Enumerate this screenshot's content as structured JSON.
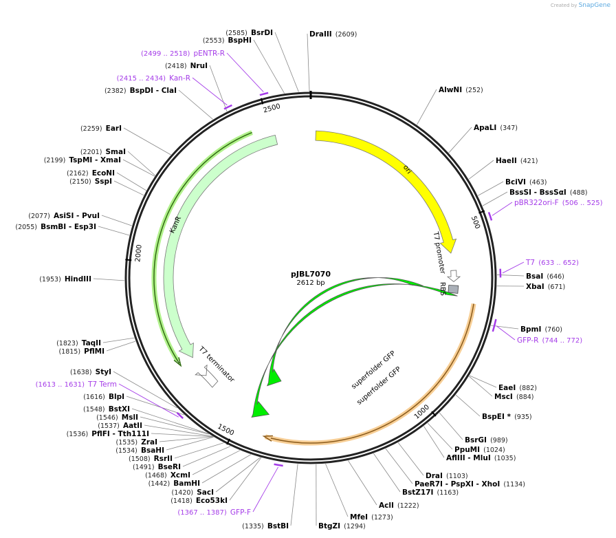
{
  "credit": {
    "prefix": "Created by",
    "brand": "SnapGene"
  },
  "plasmid": {
    "name": "pJBL7070",
    "length_label": "2612 bp",
    "length": 2612
  },
  "ticks": [
    "500",
    "1000",
    "1500",
    "2000",
    "2500"
  ],
  "features": [
    {
      "name": "ori",
      "start": 15,
      "end": 585,
      "color": "#ffff00",
      "direction": "cw"
    },
    {
      "name": "KanR",
      "start": 2510,
      "end": 1710,
      "color": "#ccffcc",
      "direction": "ccw"
    },
    {
      "name": "superfolder GFP",
      "start": 690,
      "end": 1420,
      "color": "#00ee00",
      "direction": "ccw",
      "track": "inner"
    },
    {
      "name": "superfolder GFP",
      "start": 705,
      "end": 1430,
      "color": "#00ee00",
      "direction": "ccw",
      "track": "outer"
    },
    {
      "name": "T7 promoter",
      "start": 650,
      "end": 680,
      "color": "#ffffff"
    },
    {
      "name": "RBS",
      "start": 700,
      "end": 712,
      "color": "#aab0b8"
    },
    {
      "name": "T7 terminator",
      "start": 1630,
      "end": 1660,
      "color": "#ffffff"
    }
  ],
  "enzymes": [
    {
      "name": "DraIII",
      "pos": "2609",
      "bp": 2609
    },
    {
      "name": "AlwNI",
      "pos": "252",
      "bp": 252
    },
    {
      "name": "ApaLI",
      "pos": "347",
      "bp": 347
    },
    {
      "name": "HaeII",
      "pos": "421",
      "bp": 421
    },
    {
      "name": "BciVI",
      "pos": "463",
      "bp": 463
    },
    {
      "name": "BssSI   - BssSαI",
      "pos": "488",
      "bp": 488
    },
    {
      "name": "BsaI",
      "pos": "646",
      "bp": 646
    },
    {
      "name": "XbaI",
      "pos": "671",
      "bp": 671
    },
    {
      "name": "BpmI",
      "pos": "760",
      "bp": 760
    },
    {
      "name": "EaeI",
      "pos": "882",
      "bp": 882
    },
    {
      "name": "MscI",
      "pos": "884",
      "bp": 884
    },
    {
      "name": "BspEI *",
      "pos": "935",
      "bp": 935
    },
    {
      "name": "BsrGI",
      "pos": "989",
      "bp": 989
    },
    {
      "name": "PpuMI",
      "pos": "1024",
      "bp": 1024
    },
    {
      "name": "AflIII   - MluI",
      "pos": "1035",
      "bp": 1035
    },
    {
      "name": "DraI",
      "pos": "1103",
      "bp": 1103
    },
    {
      "name": "PaeR7I   - PspXI   - XhoI",
      "pos": "1134",
      "bp": 1134
    },
    {
      "name": "BstZ17I",
      "pos": "1163",
      "bp": 1163
    },
    {
      "name": "AclI",
      "pos": "1222",
      "bp": 1222
    },
    {
      "name": "MfeI",
      "pos": "1273",
      "bp": 1273
    },
    {
      "name": "BtgZI",
      "pos": "1294",
      "bp": 1294
    },
    {
      "name": "BstBI",
      "pos": "1335",
      "bp": 1335
    },
    {
      "name": "Eco53kI",
      "pos": "1418",
      "bp": 1418
    },
    {
      "name": "SacI",
      "pos": "1420",
      "bp": 1420
    },
    {
      "name": "BamHI",
      "pos": "1442",
      "bp": 1442
    },
    {
      "name": "XcmI",
      "pos": "1468",
      "bp": 1468
    },
    {
      "name": "BseRI",
      "pos": "1491",
      "bp": 1491
    },
    {
      "name": "RsrII",
      "pos": "1508",
      "bp": 1508
    },
    {
      "name": "BsaHI",
      "pos": "1534",
      "bp": 1534
    },
    {
      "name": "ZraI",
      "pos": "1535",
      "bp": 1535
    },
    {
      "name": "PflFI   - Tth111I",
      "pos": "1536",
      "bp": 1536
    },
    {
      "name": "AatII",
      "pos": "1537",
      "bp": 1537
    },
    {
      "name": "MslI",
      "pos": "1546",
      "bp": 1546
    },
    {
      "name": "BstXI",
      "pos": "1548",
      "bp": 1548
    },
    {
      "name": "BlpI",
      "pos": "1616",
      "bp": 1616
    },
    {
      "name": "StyI",
      "pos": "1638",
      "bp": 1638
    },
    {
      "name": "PflMI",
      "pos": "1815",
      "bp": 1815
    },
    {
      "name": "TaqII",
      "pos": "1823",
      "bp": 1823
    },
    {
      "name": "HindIII",
      "pos": "1953",
      "bp": 1953
    },
    {
      "name": "BsmBI   - Esp3I",
      "pos": "2055",
      "bp": 2055
    },
    {
      "name": "AsiSI   - PvuI",
      "pos": "2077",
      "bp": 2077
    },
    {
      "name": "SspI",
      "pos": "2150",
      "bp": 2150
    },
    {
      "name": "EcoNI",
      "pos": "2162",
      "bp": 2162
    },
    {
      "name": "TspMI   - XmaI",
      "pos": "2199",
      "bp": 2199
    },
    {
      "name": "SmaI",
      "pos": "2201",
      "bp": 2201
    },
    {
      "name": "EarI",
      "pos": "2259",
      "bp": 2259
    },
    {
      "name": "BspDI   - ClaI",
      "pos": "2382",
      "bp": 2382
    },
    {
      "name": "NruI",
      "pos": "2418",
      "bp": 2418
    },
    {
      "name": "BspHI",
      "pos": "2553",
      "bp": 2553
    },
    {
      "name": "BsrDI",
      "pos": "2585",
      "bp": 2585
    }
  ],
  "primers": [
    {
      "name": "pENTR-R",
      "range": "2499 .. 2518",
      "start": 2499,
      "end": 2518
    },
    {
      "name": "Kan-R",
      "range": "2415 .. 2434",
      "start": 2415,
      "end": 2434
    },
    {
      "name": "pBR322ori-F",
      "range": "506 .. 525",
      "start": 506,
      "end": 525
    },
    {
      "name": "T7",
      "range": "633 .. 652",
      "start": 633,
      "end": 652
    },
    {
      "name": "GFP-R",
      "range": "744 .. 772",
      "start": 744,
      "end": 772
    },
    {
      "name": "T7 Term",
      "range": "1613 .. 1631",
      "start": 1613,
      "end": 1631
    },
    {
      "name": "GFP-F",
      "range": "1367 .. 1387",
      "start": 1367,
      "end": 1387
    }
  ],
  "colors": {
    "primer": "#a43be8",
    "orange": "#f5c27a",
    "kan_line": "#2f6b10"
  }
}
